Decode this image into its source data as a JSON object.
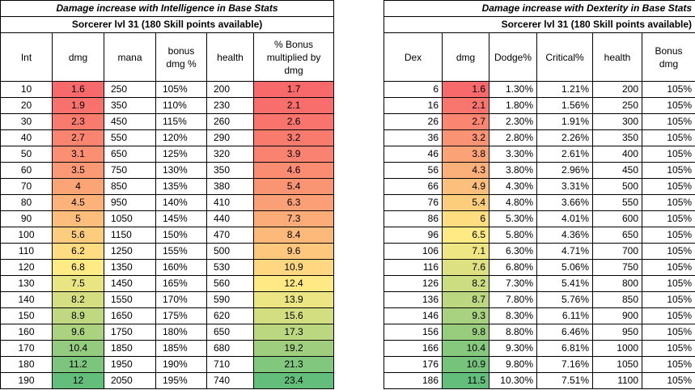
{
  "left": {
    "title": "Damage increase with Intelligence in Base Stats",
    "subtitle": "Sorcerer lvl 31 (180 Skill points available)",
    "headers": [
      "Int",
      "dmg",
      "mana",
      "bonus dmg %",
      "health",
      "% Bonus multiplied by dmg"
    ],
    "rows": [
      [
        "10",
        "1.6",
        "250",
        "105%",
        "200",
        "1.7"
      ],
      [
        "20",
        "1.9",
        "350",
        "110%",
        "230",
        "2.1"
      ],
      [
        "30",
        "2.3",
        "450",
        "115%",
        "260",
        "2.6"
      ],
      [
        "40",
        "2.7",
        "550",
        "120%",
        "290",
        "3.2"
      ],
      [
        "50",
        "3.1",
        "650",
        "125%",
        "320",
        "3.9"
      ],
      [
        "60",
        "3.5",
        "750",
        "130%",
        "350",
        "4.6"
      ],
      [
        "70",
        "4",
        "850",
        "135%",
        "380",
        "5.4"
      ],
      [
        "80",
        "4.5",
        "950",
        "140%",
        "410",
        "6.3"
      ],
      [
        "90",
        "5",
        "1050",
        "145%",
        "440",
        "7.3"
      ],
      [
        "100",
        "5.6",
        "1150",
        "150%",
        "470",
        "8.4"
      ],
      [
        "110",
        "6.2",
        "1250",
        "155%",
        "500",
        "9.6"
      ],
      [
        "120",
        "6.8",
        "1350",
        "160%",
        "530",
        "10.9"
      ],
      [
        "130",
        "7.5",
        "1450",
        "165%",
        "560",
        "12.4"
      ],
      [
        "140",
        "8.2",
        "1550",
        "170%",
        "590",
        "13.9"
      ],
      [
        "150",
        "8.9",
        "1650",
        "175%",
        "620",
        "15.6"
      ],
      [
        "160",
        "9.6",
        "1750",
        "180%",
        "650",
        "17.3"
      ],
      [
        "170",
        "10.4",
        "1850",
        "185%",
        "680",
        "19.2"
      ],
      [
        "180",
        "11.2",
        "1950",
        "190%",
        "710",
        "21.3"
      ],
      [
        "190",
        "12",
        "2050",
        "195%",
        "740",
        "23.4"
      ]
    ]
  },
  "right": {
    "title": "Damage increase with Dexterity in Base Stats",
    "subtitle": "Sorcerer lvl 31 (180 Skill points available)",
    "headers": [
      "Dex",
      "dmg",
      "Dodge%",
      "Critical%",
      "health",
      "Bonus dmg"
    ],
    "rows": [
      [
        "6",
        "1.6",
        "1.30%",
        "1.21%",
        "200",
        "105%"
      ],
      [
        "16",
        "2.1",
        "1.80%",
        "1.56%",
        "250",
        "105%"
      ],
      [
        "26",
        "2.7",
        "2.30%",
        "1.91%",
        "300",
        "105%"
      ],
      [
        "36",
        "3.2",
        "2.80%",
        "2.26%",
        "350",
        "105%"
      ],
      [
        "46",
        "3.8",
        "3.30%",
        "2.61%",
        "400",
        "105%"
      ],
      [
        "56",
        "4.3",
        "3.80%",
        "2.96%",
        "450",
        "105%"
      ],
      [
        "66",
        "4.9",
        "4.30%",
        "3.31%",
        "500",
        "105%"
      ],
      [
        "76",
        "5.4",
        "4.80%",
        "3.66%",
        "550",
        "105%"
      ],
      [
        "86",
        "6",
        "5.30%",
        "4.01%",
        "600",
        "105%"
      ],
      [
        "96",
        "6.5",
        "5.80%",
        "4.36%",
        "650",
        "105%"
      ],
      [
        "106",
        "7.1",
        "6.30%",
        "4.71%",
        "700",
        "105%"
      ],
      [
        "116",
        "7.6",
        "6.80%",
        "5.06%",
        "750",
        "105%"
      ],
      [
        "126",
        "8.2",
        "7.30%",
        "5.41%",
        "800",
        "105%"
      ],
      [
        "136",
        "8.7",
        "7.80%",
        "5.76%",
        "850",
        "105%"
      ],
      [
        "146",
        "9.3",
        "8.30%",
        "6.11%",
        "900",
        "105%"
      ],
      [
        "156",
        "9.8",
        "8.80%",
        "6.46%",
        "950",
        "105%"
      ],
      [
        "166",
        "10.4",
        "9.30%",
        "6.81%",
        "1000",
        "105%"
      ],
      [
        "176",
        "10.9",
        "9.80%",
        "7.16%",
        "1050",
        "105%"
      ],
      [
        "186",
        "11.5",
        "10.30%",
        "7.51%",
        "1100",
        "105%"
      ]
    ]
  },
  "colors": {
    "scale_low": "#f8696b",
    "scale_mid": "#ffeb84",
    "scale_high": "#63be7b",
    "border": "#000000",
    "background": "#ffffff"
  }
}
